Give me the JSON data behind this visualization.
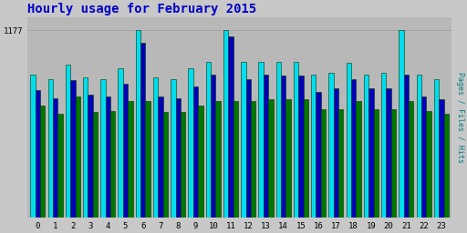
{
  "title": "Hourly usage for February 2015",
  "title_color": "#0000cc",
  "title_fontsize": 10,
  "ylabel_right": "Pages / Files / Hits",
  "ylabel_right_color": "#008080",
  "hours": [
    0,
    1,
    2,
    3,
    4,
    5,
    6,
    7,
    8,
    9,
    10,
    11,
    12,
    13,
    14,
    15,
    16,
    17,
    18,
    19,
    20,
    21,
    22,
    23
  ],
  "ymax": 1177,
  "ytick_label": "1177",
  "pages": [
    700,
    650,
    760,
    660,
    670,
    730,
    730,
    660,
    660,
    700,
    730,
    730,
    730,
    740,
    740,
    740,
    680,
    680,
    730,
    680,
    680,
    730,
    670,
    650
  ],
  "files": [
    800,
    750,
    860,
    770,
    760,
    840,
    1100,
    760,
    750,
    820,
    900,
    1140,
    870,
    900,
    890,
    890,
    790,
    810,
    870,
    810,
    810,
    900,
    760,
    740
  ],
  "hits": [
    900,
    870,
    960,
    880,
    870,
    940,
    1177,
    880,
    870,
    940,
    980,
    1177,
    980,
    980,
    980,
    980,
    900,
    910,
    970,
    900,
    910,
    1177,
    900,
    870
  ],
  "color_pages": "#007700",
  "color_files": "#0000bb",
  "color_hits": "#00ddee",
  "bar_edge_color": "#003300",
  "background_color": "#c8c8c8",
  "plot_bg_color": "#b8b8b8",
  "ylim": [
    0,
    1260
  ],
  "bar_width": 0.28,
  "figwidth": 5.12,
  "figheight": 2.56,
  "dpi": 100
}
